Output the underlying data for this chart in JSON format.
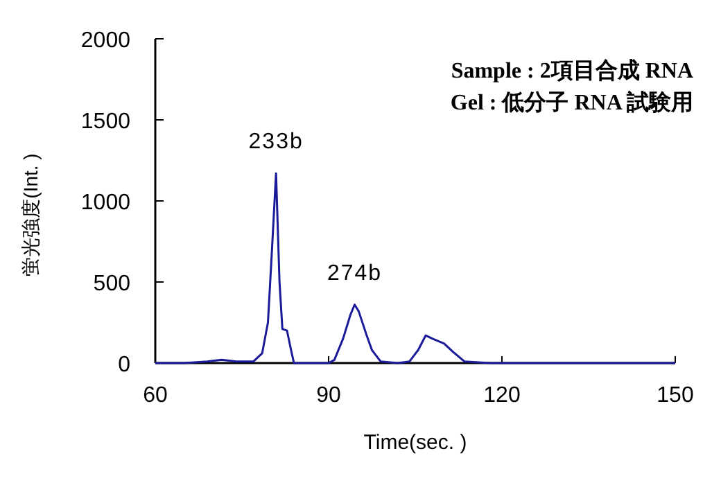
{
  "chart_data": {
    "type": "line",
    "xlabel": "Time(sec. )",
    "ylabel": "蛍光強度(Int. )",
    "xlim": [
      60,
      150
    ],
    "xticks": [
      60,
      90,
      120,
      150
    ],
    "ylim": [
      0,
      2000
    ],
    "yticks": [
      0,
      500,
      1000,
      1500,
      2000
    ],
    "marker": "none",
    "line_style": "solid",
    "series": [
      {
        "color": "#1a1a9a",
        "x": [
          60,
          65,
          69,
          71.5,
          74,
          77,
          78.5,
          79.5,
          80.2,
          80.9,
          81.5,
          82,
          82.8,
          83.5,
          84,
          88,
          90,
          91,
          92.5,
          93.8,
          94.5,
          95.2,
          96.5,
          97.5,
          99,
          102,
          104,
          105.5,
          106.8,
          108,
          110,
          111.5,
          113.5,
          118,
          130,
          140,
          150
        ],
        "values": [
          0,
          0,
          10,
          20,
          10,
          10,
          60,
          250,
          700,
          1170,
          500,
          210,
          200,
          80,
          0,
          0,
          0,
          20,
          150,
          300,
          360,
          320,
          180,
          80,
          10,
          0,
          10,
          80,
          170,
          150,
          120,
          70,
          10,
          0,
          0,
          0,
          0
        ]
      }
    ],
    "annotations": [
      {
        "text": "233b",
        "x": 80.9,
        "y": 1170
      },
      {
        "text": "274b",
        "x": 94.5,
        "y": 360
      },
      "Sample : 2項目合成 RNA",
      "Gel : 低分子 RNA 試験用"
    ]
  }
}
